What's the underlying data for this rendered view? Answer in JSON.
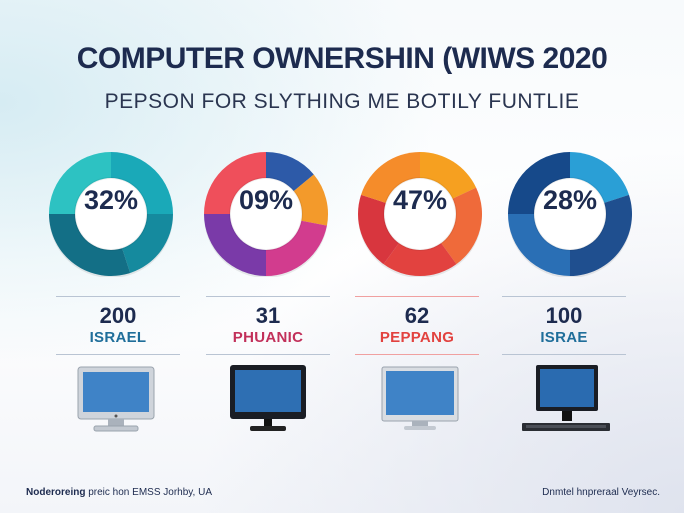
{
  "title": "COMPUTER OWNERSHIN (WIWS 2020",
  "subtitle": "PEPSON FOR SLYTHING ME BOTILY FUNTLIE",
  "chart_data": {
    "type": "pie",
    "items": [
      {
        "center_label": "32%",
        "value": 32,
        "count": "200",
        "label": "ISRAEL",
        "label_color": "#1f6e9a",
        "line_color": "#b9c4d3",
        "slices": [
          {
            "value": 25,
            "color": "#1aa9b8"
          },
          {
            "value": 20,
            "color": "#158a9e"
          },
          {
            "value": 30,
            "color": "#136f86"
          },
          {
            "value": 25,
            "color": "#2dc2c2"
          }
        ]
      },
      {
        "center_label": "09%",
        "value": 9,
        "count": "31",
        "label": "PHUANIC",
        "label_color": "#c2305a",
        "line_color": "#b9c4d3",
        "slices": [
          {
            "value": 14,
            "color": "#2d5aa8"
          },
          {
            "value": 14,
            "color": "#f39a2b"
          },
          {
            "value": 22,
            "color": "#d23c8e"
          },
          {
            "value": 25,
            "color": "#7a3aa8"
          },
          {
            "value": 25,
            "color": "#ef4f5b"
          }
        ]
      },
      {
        "center_label": "47%",
        "value": 47,
        "count": "62",
        "label": "PEPPANG",
        "label_color": "#e2423f",
        "line_color": "#f0a0a0",
        "slices": [
          {
            "value": 18,
            "color": "#f6a020"
          },
          {
            "value": 22,
            "color": "#ef6a3a"
          },
          {
            "value": 20,
            "color": "#e2423f"
          },
          {
            "value": 20,
            "color": "#d8363e"
          },
          {
            "value": 20,
            "color": "#f58c2a"
          }
        ]
      },
      {
        "center_label": "28%",
        "value": 28,
        "count": "100",
        "label": "ISRAE",
        "label_color": "#1f6e9a",
        "line_color": "#b9c4d3",
        "slices": [
          {
            "value": 20,
            "color": "#2a9fd6"
          },
          {
            "value": 30,
            "color": "#1f4f8f"
          },
          {
            "value": 25,
            "color": "#2a6fb5"
          },
          {
            "value": 25,
            "color": "#16498a"
          }
        ]
      }
    ]
  },
  "monitors": [
    {
      "icon": "monitor-icon",
      "screen_color": "#3f83c7",
      "frame_color": "#cfd4db"
    },
    {
      "icon": "monitor-icon",
      "screen_color": "#2e6fb3",
      "frame_color": "#1a1d24"
    },
    {
      "icon": "monitor-icon",
      "screen_color": "#3f83c7",
      "frame_color": "#d9dde2"
    },
    {
      "icon": "monitor-icon",
      "screen_color": "#2a6bb0",
      "frame_color": "#1a1d24"
    }
  ],
  "footer": {
    "left_bold": "Noderoreing",
    "left_rest": " preic hon EMSS Jorhby, UA",
    "right": "Dnmtel hnpreraal Veyrsec."
  }
}
